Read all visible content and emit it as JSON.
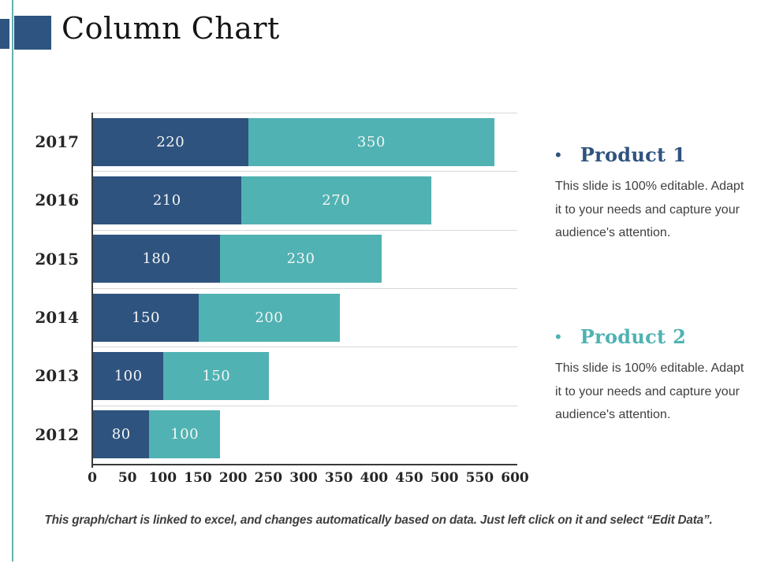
{
  "slide": {
    "title": "Column Chart",
    "caption": "This graph/chart is linked to excel, and changes automatically based on data. Just left click on it and select “Edit Data”."
  },
  "chart_data": {
    "type": "bar",
    "orientation": "horizontal",
    "stacked": true,
    "title": "",
    "xlabel": "",
    "ylabel": "",
    "categories": [
      "2017",
      "2016",
      "2015",
      "2014",
      "2013",
      "2012"
    ],
    "series": [
      {
        "name": "Product 1",
        "color": "#2e537f",
        "values": [
          220,
          210,
          180,
          150,
          100,
          80
        ]
      },
      {
        "name": "Product 2",
        "color": "#50b2b2",
        "values": [
          350,
          270,
          230,
          200,
          150,
          100
        ]
      }
    ],
    "xlim": [
      0,
      600
    ],
    "x_ticks": [
      0,
      50,
      100,
      150,
      200,
      250,
      300,
      350,
      400,
      450,
      500,
      550,
      600
    ],
    "grid": "category separator lines, light gray",
    "legend_position": "right text blocks",
    "value_labels": "inside segments, white serif"
  },
  "legend": {
    "items": [
      {
        "bullet": "•",
        "title": "Product 1",
        "color": "#2e537f",
        "body": "This slide is 100% editable. Adapt it to your needs and capture your audience's attention."
      },
      {
        "bullet": "•",
        "title": "Product 2",
        "color": "#50b2b2",
        "body": "This slide is 100% editable. Adapt it to your needs and capture your audience's attention."
      }
    ]
  },
  "colors": {
    "accent_dark_blue": "#2e5481",
    "accent_teal": "#50b2b2",
    "decor_line_teal": "#63b1b1",
    "axis": "#3a3a3a",
    "gridline": "#d8d8d8",
    "tick_text": "#262626",
    "body_text": "#3f3f3f",
    "bar_value_text": "#f5f5f5",
    "title_text": "#151515"
  }
}
